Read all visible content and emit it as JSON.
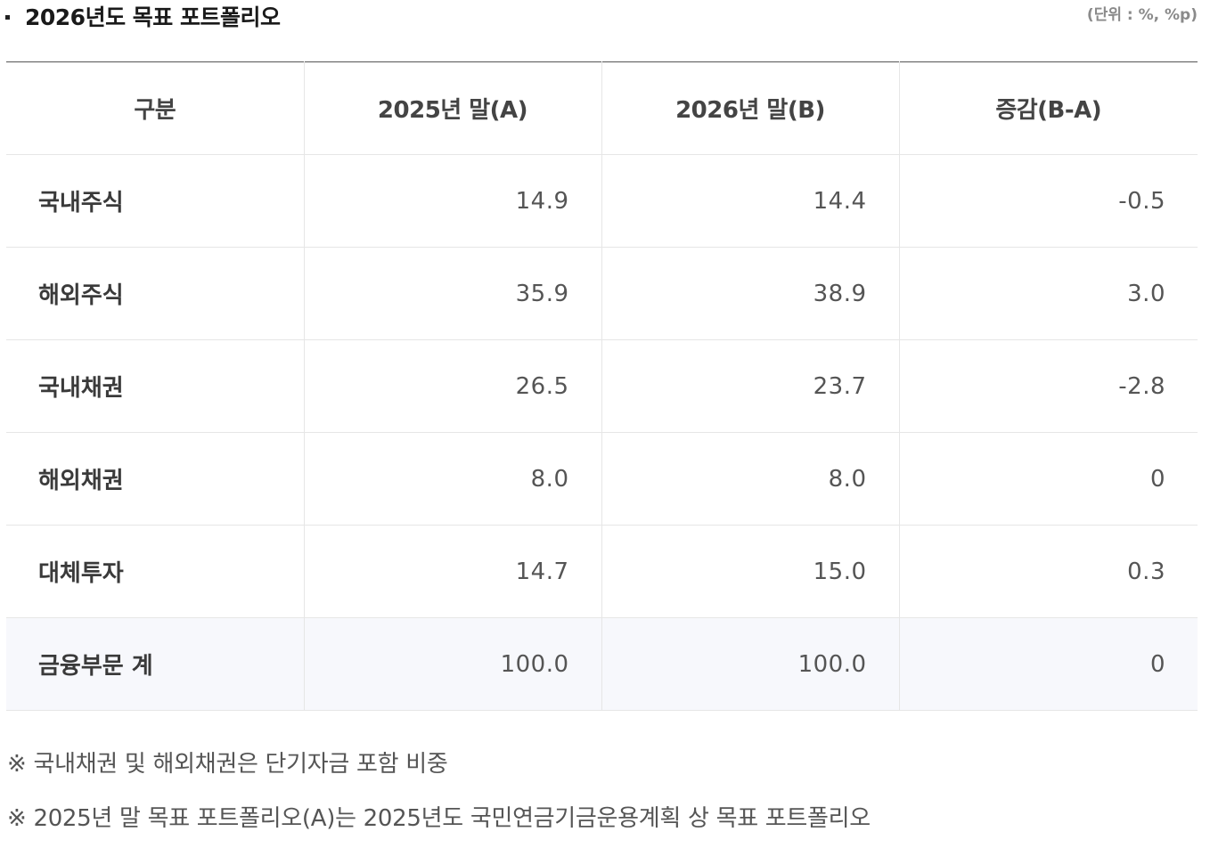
{
  "header": {
    "title": "2026년도 목표 포트폴리오",
    "unit": "(단위 : %, %p)"
  },
  "table": {
    "columns": [
      "구분",
      "2025년 말(A)",
      "2026년 말(B)",
      "증감(B-A)"
    ],
    "rows": [
      {
        "label": "국내주식",
        "a": "14.9",
        "b": "14.4",
        "diff": "-0.5"
      },
      {
        "label": "해외주식",
        "a": "35.9",
        "b": "38.9",
        "diff": "3.0"
      },
      {
        "label": "국내채권",
        "a": "26.5",
        "b": "23.7",
        "diff": "-2.8"
      },
      {
        "label": "해외채권",
        "a": "8.0",
        "b": "8.0",
        "diff": "0"
      },
      {
        "label": "대체투자",
        "a": "14.7",
        "b": "15.0",
        "diff": "0.3"
      }
    ],
    "total": {
      "label": "금융부문 계",
      "a": "100.0",
      "b": "100.0",
      "diff": "0"
    }
  },
  "notes": [
    "※ 국내채권 및 해외채권은 단기자금 포함 비중",
    "※ 2025년 말 목표 포트폴리오(A)는 2025년도 국민연금기금운용계획 상 목표 포트폴리오"
  ]
}
